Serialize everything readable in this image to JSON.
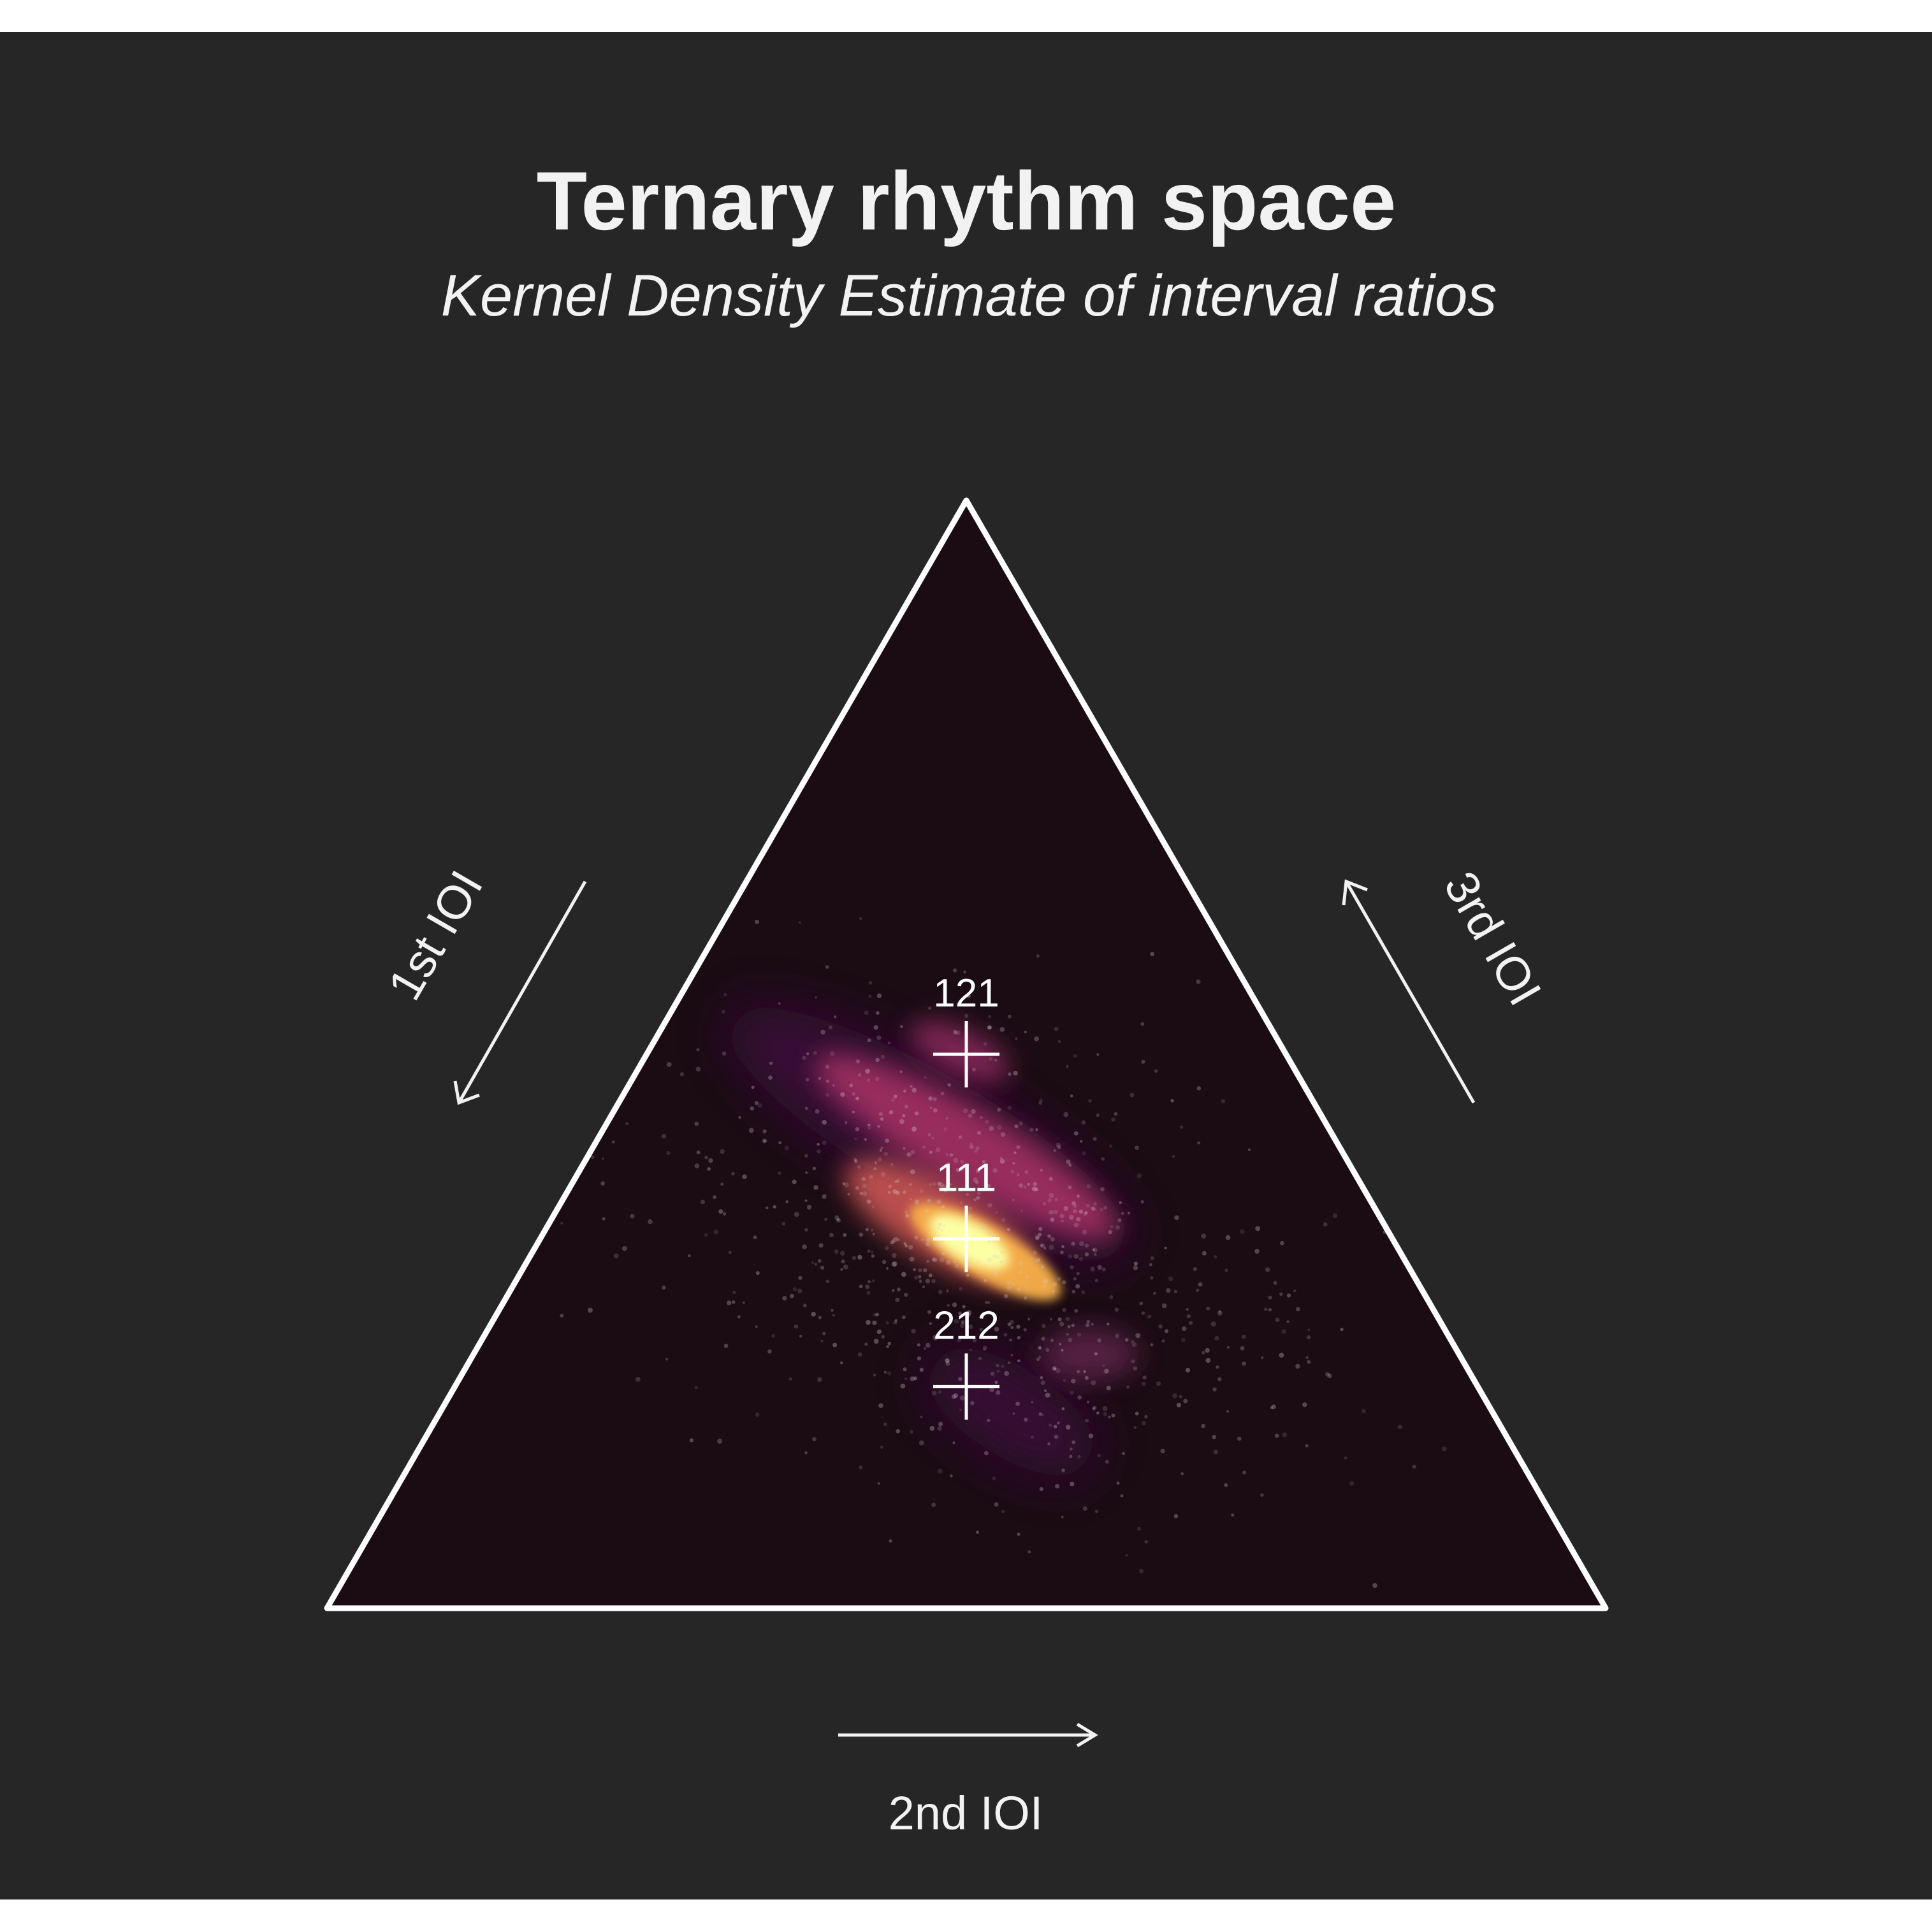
{
  "chart_data": {
    "type": "ternary density",
    "title": "Ternary rhythm space",
    "subtitle": "Kernel Density Estimate of interval ratios",
    "axes": [
      {
        "name": "1st IOI",
        "key": "a"
      },
      {
        "name": "2nd IOI",
        "key": "b"
      },
      {
        "name": "3rd IOI",
        "key": "c"
      }
    ],
    "reference_points": [
      {
        "label": "212",
        "a": 0.4,
        "b": 0.2,
        "c": 0.4
      },
      {
        "label": "111",
        "a": 0.3333,
        "b": 0.3333,
        "c": 0.3333
      },
      {
        "label": "121",
        "a": 0.25,
        "b": 0.5,
        "c": 0.25
      }
    ],
    "density_clusters": [
      {
        "a": 0.333,
        "b": 0.333,
        "c": 0.333,
        "weight": 1.0
      },
      {
        "a": 0.3,
        "b": 0.4,
        "c": 0.3,
        "weight": 0.65
      },
      {
        "a": 0.37,
        "b": 0.27,
        "c": 0.36,
        "weight": 0.45
      },
      {
        "a": 0.25,
        "b": 0.5,
        "c": 0.25,
        "weight": 0.35
      },
      {
        "a": 0.4,
        "b": 0.2,
        "c": 0.4,
        "weight": 0.3
      },
      {
        "a": 0.29,
        "b": 0.22,
        "c": 0.49,
        "weight": 0.2
      }
    ],
    "colors": {
      "background": "#262626",
      "triangle_fill": "#1b0c14",
      "outline": "#ffffff",
      "density_low": "#3b0f3a",
      "density_mid": "#b7376a",
      "density_high": "#fcffa4"
    }
  }
}
